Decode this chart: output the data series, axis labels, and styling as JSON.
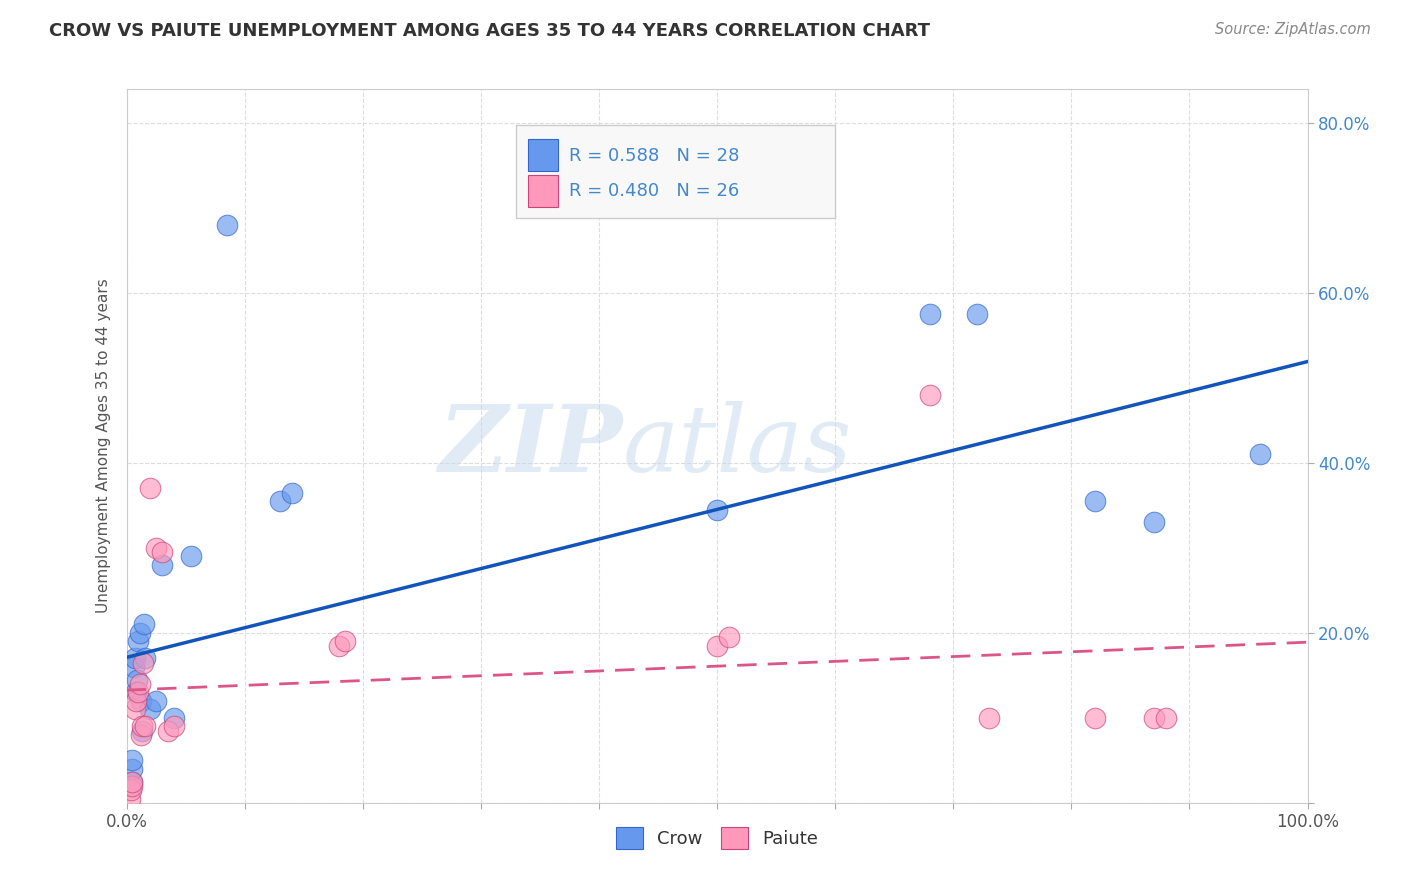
{
  "title": "CROW VS PAIUTE UNEMPLOYMENT AMONG AGES 35 TO 44 YEARS CORRELATION CHART",
  "source": "Source: ZipAtlas.com",
  "ylabel": "Unemployment Among Ages 35 to 44 years",
  "xlim": [
    0,
    1.0
  ],
  "ylim": [
    0,
    0.84
  ],
  "x_ticks": [
    0.0,
    0.1,
    0.2,
    0.3,
    0.4,
    0.5,
    0.6,
    0.7,
    0.8,
    0.9,
    1.0
  ],
  "x_tick_labels": [
    "0.0%",
    "",
    "",
    "",
    "",
    "",
    "",
    "",
    "",
    "",
    "100.0%"
  ],
  "y_ticks": [
    0.0,
    0.2,
    0.4,
    0.6,
    0.8
  ],
  "y_tick_labels_right": [
    "",
    "20.0%",
    "40.0%",
    "60.0%",
    "80.0%"
  ],
  "crow_color": "#6699ee",
  "crow_edge": "#3366cc",
  "paiute_color": "#ff99bb",
  "paiute_edge": "#cc4477",
  "crow_R": 0.588,
  "crow_N": 28,
  "paiute_R": 0.48,
  "paiute_N": 26,
  "crow_x": [
    0.004,
    0.005,
    0.005,
    0.005,
    0.006,
    0.007,
    0.008,
    0.009,
    0.01,
    0.011,
    0.012,
    0.013,
    0.015,
    0.016,
    0.02,
    0.025,
    0.03,
    0.04,
    0.055,
    0.085,
    0.13,
    0.14,
    0.5,
    0.68,
    0.72,
    0.82,
    0.87,
    0.96
  ],
  "crow_y": [
    0.02,
    0.025,
    0.04,
    0.05,
    0.16,
    0.17,
    0.13,
    0.145,
    0.19,
    0.2,
    0.12,
    0.085,
    0.21,
    0.17,
    0.11,
    0.12,
    0.28,
    0.1,
    0.29,
    0.68,
    0.355,
    0.365,
    0.345,
    0.575,
    0.575,
    0.355,
    0.33,
    0.41
  ],
  "paiute_x": [
    0.003,
    0.004,
    0.005,
    0.005,
    0.007,
    0.008,
    0.01,
    0.011,
    0.012,
    0.013,
    0.014,
    0.016,
    0.02,
    0.025,
    0.03,
    0.035,
    0.04,
    0.18,
    0.185,
    0.5,
    0.51,
    0.68,
    0.73,
    0.82,
    0.87,
    0.88
  ],
  "paiute_y": [
    0.005,
    0.015,
    0.02,
    0.025,
    0.11,
    0.12,
    0.13,
    0.14,
    0.08,
    0.09,
    0.165,
    0.09,
    0.37,
    0.3,
    0.295,
    0.085,
    0.09,
    0.185,
    0.19,
    0.185,
    0.195,
    0.48,
    0.1,
    0.1,
    0.1,
    0.1
  ],
  "watermark_zip": "ZIP",
  "watermark_atlas": "atlas",
  "background_color": "#ffffff",
  "grid_color": "#dddddd",
  "text_blue": "#4488cc",
  "legend_text_color": "#4488cc"
}
